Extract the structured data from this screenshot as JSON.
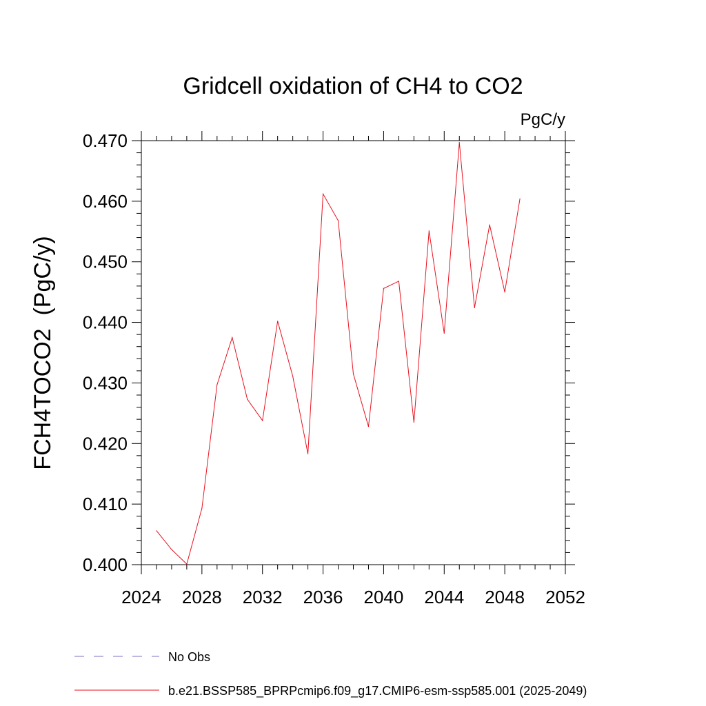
{
  "chart_data": {
    "type": "line",
    "title": "Gridcell oxidation of CH4 to CO2",
    "units_label": "PgC/y",
    "ylabel": "FCH4TOCO2  (PgC/y)",
    "xlabel": "",
    "xlim": [
      2024,
      2052
    ],
    "ylim": [
      0.4,
      0.47
    ],
    "x_ticks": [
      2024,
      2028,
      2032,
      2036,
      2040,
      2044,
      2048,
      2052
    ],
    "x_tick_labels": [
      "2024",
      "2028",
      "2032",
      "2036",
      "2040",
      "2044",
      "2048",
      "2052"
    ],
    "y_ticks": [
      0.4,
      0.41,
      0.42,
      0.43,
      0.44,
      0.45,
      0.46,
      0.47
    ],
    "y_tick_labels": [
      "0.400",
      "0.410",
      "0.420",
      "0.430",
      "0.440",
      "0.450",
      "0.460",
      "0.470"
    ],
    "grid": false,
    "legend_position": "bottom",
    "legend": [
      {
        "label": "No Obs",
        "color": "#7b6fc4",
        "style": "dashed"
      },
      {
        "label": "b.e21.BSSP585_BPRPcmip6.f09_g17.CMIP6-esm-ssp585.001 (2025-2049)",
        "color": "#e8111e",
        "style": "solid"
      }
    ],
    "series": [
      {
        "color": "#e8111e",
        "x": [
          2025,
          2026,
          2027,
          2028,
          2029,
          2030,
          2031,
          2032,
          2033,
          2034,
          2035,
          2036,
          2037,
          2038,
          2039,
          2040,
          2041,
          2042,
          2043,
          2044,
          2045,
          2046,
          2047,
          2048,
          2049
        ],
        "y": [
          0.4056,
          0.4025,
          0.4001,
          0.4093,
          0.4297,
          0.4375,
          0.4273,
          0.4238,
          0.4402,
          0.4311,
          0.4183,
          0.4612,
          0.4568,
          0.4315,
          0.4228,
          0.4456,
          0.4468,
          0.4235,
          0.4551,
          0.4382,
          0.4697,
          0.4424,
          0.4561,
          0.445,
          0.4604
        ]
      }
    ]
  }
}
